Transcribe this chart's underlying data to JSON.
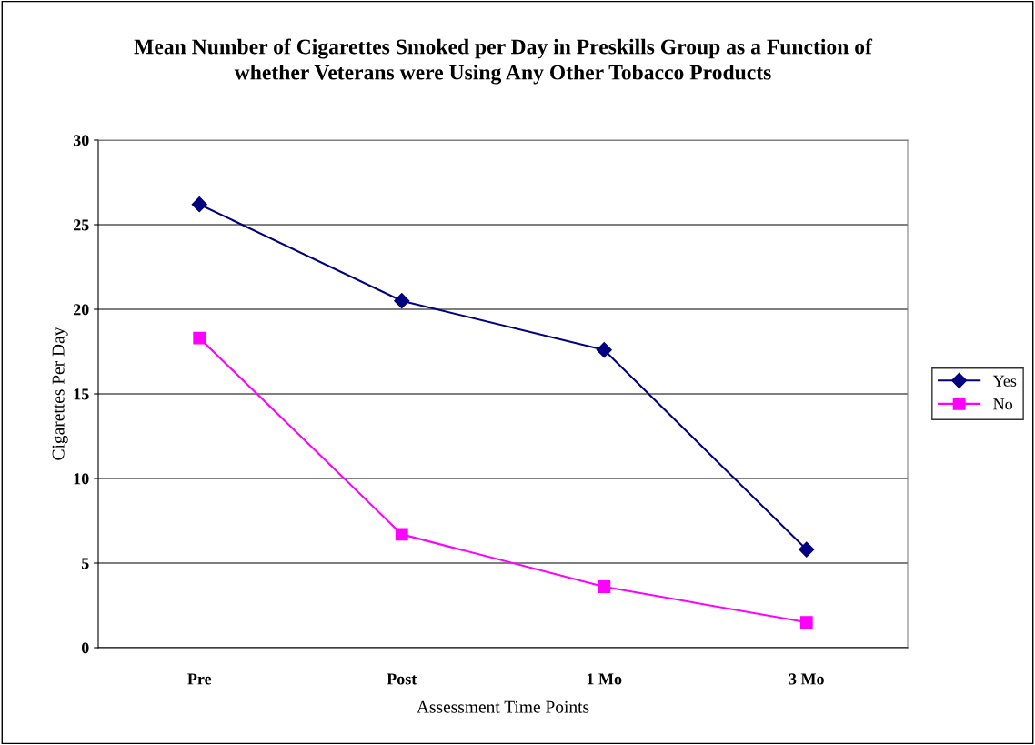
{
  "chart_data": {
    "type": "line",
    "title": "Mean Number of Cigarettes Smoked per Day in Preskills Group as a Function of\nwhether Veterans were Using Any Other Tobacco Products",
    "xlabel": "Assessment Time Points",
    "ylabel": "Cigarettes Per Day",
    "categories": [
      "Pre",
      "Post",
      "1 Mo",
      "3 Mo"
    ],
    "series": [
      {
        "name": "Yes",
        "color": "#000080",
        "marker": "diamond",
        "values": [
          26.2,
          20.5,
          17.6,
          5.8
        ]
      },
      {
        "name": "No",
        "color": "#ff00ff",
        "marker": "square",
        "values": [
          18.3,
          6.7,
          3.6,
          1.5
        ]
      }
    ],
    "ylim": [
      0,
      30
    ],
    "yticks": [
      0,
      5,
      10,
      15,
      20,
      25,
      30
    ],
    "grid": "y",
    "legend": "right",
    "line_style": "solid"
  }
}
